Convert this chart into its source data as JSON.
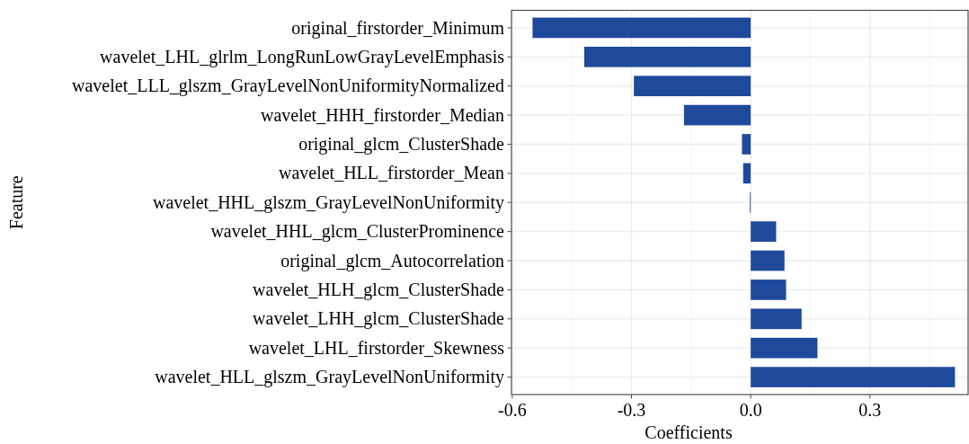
{
  "chart_data": {
    "type": "bar",
    "orientation": "horizontal",
    "xlabel": "Coefficients",
    "ylabel": "Feature",
    "categories": [
      "original_firstorder_Minimum",
      "wavelet_LHL_glrlm_LongRunLowGrayLevelEmphasis",
      "wavelet_LLL_glszm_GrayLevelNonUniformityNormalized",
      "wavelet_HHH_firstorder_Median",
      "original_glcm_ClusterShade",
      "wavelet_HLL_firstorder_Mean",
      "wavelet_HHL_glszm_GrayLevelNonUniformity",
      "wavelet_HHL_glcm_ClusterProminence",
      "original_glcm_Autocorrelation",
      "wavelet_HLH_glcm_ClusterShade",
      "wavelet_LHH_glcm_ClusterShade",
      "wavelet_LHL_firstorder_Skewness",
      "wavelet_HLL_glszm_GrayLevelNonUniformity"
    ],
    "values": [
      -0.549,
      -0.419,
      -0.294,
      -0.168,
      -0.022,
      -0.019,
      -0.002,
      0.064,
      0.085,
      0.089,
      0.128,
      0.168,
      0.514
    ],
    "color": "#1f4a9c",
    "xlim": [
      -0.602,
      0.547
    ],
    "xticks": [
      {
        "value": -0.6,
        "label": "-0.6"
      },
      {
        "value": -0.3,
        "label": "-0.3"
      },
      {
        "value": 0,
        "label": "0.0"
      },
      {
        "value": 0.3,
        "label": "0.3"
      }
    ],
    "grid": true
  }
}
